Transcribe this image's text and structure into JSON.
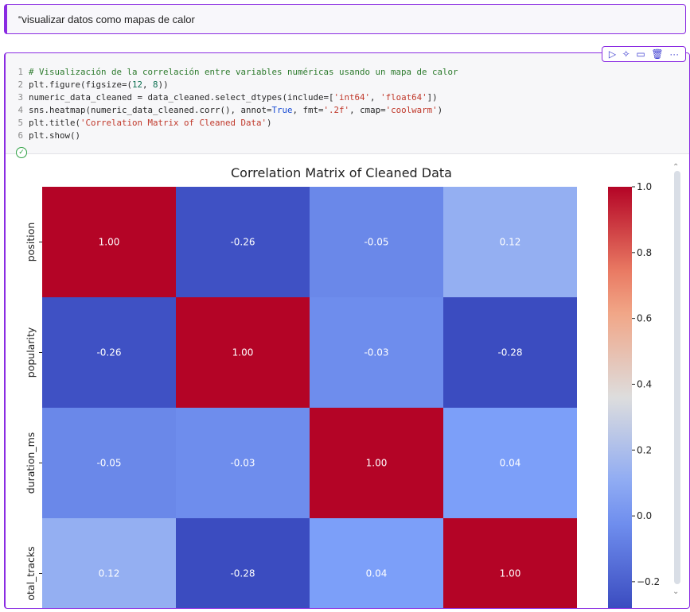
{
  "markdown_cell": {
    "text": "“visualizar datos como mapas de calor"
  },
  "toolbar": {
    "run": "▷",
    "ai": "✧",
    "comment": "▭",
    "delete": "🗑",
    "more": "···"
  },
  "code_lines": [
    {
      "n": "1",
      "parts": [
        {
          "t": "# Visualización de la correlación entre variables numéricas usando un mapa de calor",
          "c": "cmt"
        }
      ]
    },
    {
      "n": "2",
      "parts": [
        {
          "t": "plt.figure(figsize=(",
          "c": ""
        },
        {
          "t": "12",
          "c": "num"
        },
        {
          "t": ", ",
          "c": ""
        },
        {
          "t": "8",
          "c": "num"
        },
        {
          "t": "))",
          "c": ""
        }
      ]
    },
    {
      "n": "3",
      "parts": [
        {
          "t": "numeric_data_cleaned = data_cleaned.select_dtypes(include=[",
          "c": ""
        },
        {
          "t": "'int64'",
          "c": "str"
        },
        {
          "t": ", ",
          "c": ""
        },
        {
          "t": "'float64'",
          "c": "str"
        },
        {
          "t": "])",
          "c": ""
        }
      ]
    },
    {
      "n": "4",
      "parts": [
        {
          "t": "sns.heatmap(numeric_data_cleaned.corr(), annot=",
          "c": ""
        },
        {
          "t": "True",
          "c": "kw"
        },
        {
          "t": ", fmt=",
          "c": ""
        },
        {
          "t": "'.2f'",
          "c": "str"
        },
        {
          "t": ", cmap=",
          "c": ""
        },
        {
          "t": "'coolwarm'",
          "c": "str"
        },
        {
          "t": ")",
          "c": ""
        }
      ]
    },
    {
      "n": "5",
      "parts": [
        {
          "t": "plt.title(",
          "c": ""
        },
        {
          "t": "'Correlation Matrix of Cleaned Data'",
          "c": "str"
        },
        {
          "t": ")",
          "c": ""
        }
      ]
    },
    {
      "n": "6",
      "parts": [
        {
          "t": "plt.show()",
          "c": ""
        }
      ]
    }
  ],
  "status": {
    "icon": "check-circle-icon",
    "glyph": "✓"
  },
  "chart_data": {
    "type": "heatmap",
    "title": "Correlation Matrix of Cleaned Data",
    "row_labels": [
      "position",
      "popularity",
      "duration_ms",
      "otal_tracks"
    ],
    "col_labels": [],
    "values": [
      [
        1.0,
        -0.26,
        -0.05,
        0.12
      ],
      [
        -0.26,
        1.0,
        -0.03,
        -0.28
      ],
      [
        -0.05,
        -0.03,
        1.0,
        0.04
      ],
      [
        0.12,
        -0.28,
        0.04,
        1.0
      ]
    ],
    "annotations": [
      [
        "1.00",
        "-0.26",
        "-0.05",
        "0.12"
      ],
      [
        "-0.26",
        "1.00",
        "-0.03",
        "-0.28"
      ],
      [
        "-0.05",
        "-0.03",
        "1.00",
        "0.04"
      ],
      [
        "0.12",
        "-0.28",
        "0.04",
        "1.00"
      ]
    ],
    "colormap": "coolwarm",
    "vmin": -0.28,
    "vmax": 1.0,
    "colorbar_ticks": [
      "1.0",
      "0.8",
      "0.6",
      "0.4",
      "0.2",
      "0.0",
      "−0.2"
    ],
    "colorbar_values": [
      1.0,
      0.8,
      0.6,
      0.4,
      0.2,
      0.0,
      -0.2
    ]
  }
}
